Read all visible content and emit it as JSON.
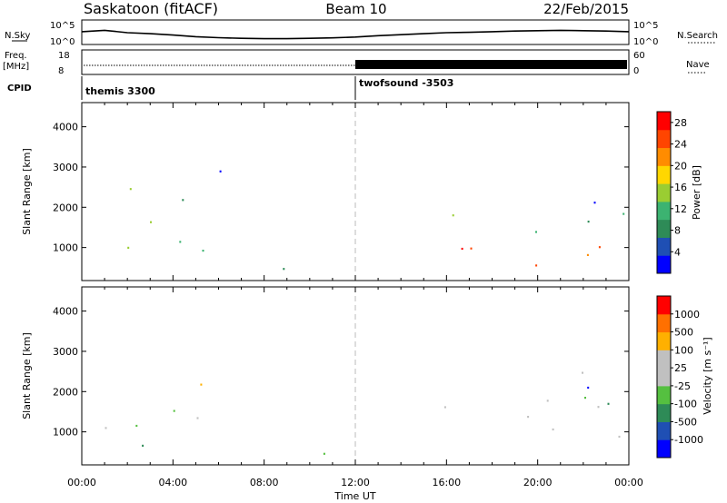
{
  "header": {
    "station": "Saskatoon (fitACF)",
    "beam": "Beam 10",
    "date": "22/Feb/2015"
  },
  "strips": {
    "nsky_label": "N.Sky",
    "nsearch_label": "N.Search",
    "freq_label_line1": "Freq.",
    "freq_label_line2": "[MHz]",
    "nave_label": "Nave",
    "cpid_label": "CPID",
    "noise_ticks": [
      "10^5",
      "10^0"
    ],
    "freq_ticks": [
      "18",
      "8"
    ],
    "nave_ticks": [
      "60",
      "0"
    ],
    "cpid_segments": [
      {
        "start_hour": 0,
        "label": "themis 3300"
      },
      {
        "start_hour": 12,
        "label": "twofsound -3503"
      }
    ]
  },
  "colors": {
    "power": [
      "#0000ff",
      "#1f4fb4",
      "#2e8b57",
      "#3cb371",
      "#9acd32",
      "#ffd700",
      "#ff8c00",
      "#ff4500",
      "#ff0000"
    ],
    "velocity": [
      "#0000ff",
      "#1f4fb4",
      "#2e8b57",
      "#55c040",
      "#c0c0c0",
      "#c0c0c0",
      "#ffb000",
      "#ff7000",
      "#ff0000"
    ]
  },
  "chart_data": [
    {
      "type": "heatmap",
      "title": "",
      "xlabel": "Time UT",
      "ylabel": "Slant Range [km]",
      "xlim": [
        0,
        24
      ],
      "ylim": [
        180,
        4600
      ],
      "xticks": [
        "00:00",
        "04:00",
        "08:00",
        "12:00",
        "16:00",
        "20:00",
        "00:00"
      ],
      "yticks": [
        1000,
        2000,
        3000,
        4000
      ],
      "colorbar": {
        "label": "Power [dB]",
        "ticks": [
          4,
          8,
          12,
          16,
          20,
          24,
          28
        ],
        "range": [
          0,
          30
        ]
      },
      "regions": [
        {
          "t0": 0.1,
          "t1": 3.0,
          "r0": 500,
          "r1": 2200,
          "level": 0.45
        },
        {
          "t0": 1.5,
          "t1": 5.0,
          "r0": 800,
          "r1": 2700,
          "level": 0.35
        },
        {
          "t0": 5.0,
          "t1": 6.2,
          "r0": 300,
          "r1": 3400,
          "level": 0.25
        },
        {
          "t0": 6.0,
          "t1": 12.0,
          "r0": 200,
          "r1": 600,
          "level": 0.4
        },
        {
          "t0": 13.8,
          "t1": 24.0,
          "r0": 700,
          "r1": 1500,
          "level": 0.85
        },
        {
          "t0": 14.0,
          "t1": 24.0,
          "r0": 1300,
          "r1": 2500,
          "level": 0.3
        },
        {
          "t0": 18.5,
          "t1": 22.0,
          "r0": 300,
          "r1": 700,
          "level": 0.95
        }
      ]
    },
    {
      "type": "heatmap",
      "title": "",
      "xlabel": "Time UT",
      "ylabel": "Slant Range [km]",
      "xlim": [
        0,
        24
      ],
      "ylim": [
        180,
        4600
      ],
      "xticks": [
        "00:00",
        "04:00",
        "08:00",
        "12:00",
        "16:00",
        "20:00",
        "00:00"
      ],
      "yticks": [
        1000,
        2000,
        3000,
        4000
      ],
      "colorbar": {
        "label": "Velocity [m s⁻¹]",
        "ticks": [
          1000,
          500,
          100,
          25,
          -25,
          -100,
          -500,
          -1000
        ]
      },
      "regions": [
        {
          "t0": 0.1,
          "t1": 2.5,
          "r0": 400,
          "r1": 2200,
          "level": 0.6
        },
        {
          "t0": 1.5,
          "t1": 6.0,
          "r0": 600,
          "r1": 1200,
          "level": 0.15
        },
        {
          "t0": 4.0,
          "t1": 6.5,
          "r0": 800,
          "r1": 3400,
          "level": 0.5
        },
        {
          "t0": 6.0,
          "t1": 13.5,
          "r0": 200,
          "r1": 600,
          "level": 0.65
        },
        {
          "t0": 14.0,
          "t1": 24.0,
          "r0": 500,
          "r1": 2500,
          "level": 0.5
        },
        {
          "t0": 22.0,
          "t1": 24.0,
          "r0": 1000,
          "r1": 2200,
          "level": 0.2
        }
      ]
    }
  ],
  "summary_series": {
    "noise_sky": [
      0.55,
      0.62,
      0.5,
      0.45,
      0.38,
      0.3,
      0.25,
      0.22,
      0.2,
      0.2,
      0.22,
      0.24,
      0.28,
      0.35,
      0.4,
      0.45,
      0.5,
      0.52,
      0.55,
      0.58,
      0.6,
      0.62,
      0.6,
      0.58,
      0.55
    ],
    "freq": [
      0.55,
      0.55,
      0.55,
      0.55,
      0.55,
      0.55,
      0.55,
      0.55,
      0.55,
      0.55,
      0.55,
      0.55,
      0.55
    ],
    "nave_after_hour": 12
  }
}
